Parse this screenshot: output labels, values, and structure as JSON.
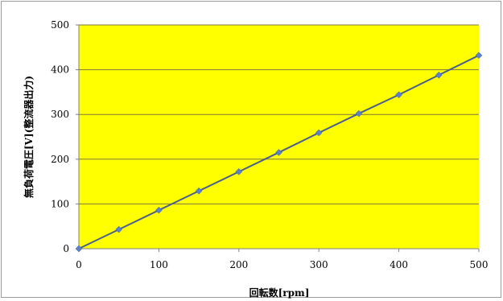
{
  "chart_data": {
    "type": "line",
    "xlabel": "回転数[rpm]",
    "ylabel": "無負荷電圧[V](整流器出力)",
    "xlim": [
      0,
      500
    ],
    "ylim": [
      0,
      500
    ],
    "x_ticks": [
      0,
      100,
      200,
      300,
      400,
      500
    ],
    "y_ticks": [
      0,
      100,
      200,
      300,
      400,
      500
    ],
    "grid": "horizontal",
    "legend": "none",
    "series": [
      {
        "x": [
          0,
          50,
          100,
          150,
          200,
          250,
          300,
          350,
          400,
          450,
          500
        ],
        "y": [
          0,
          43,
          86,
          129,
          172,
          215,
          259,
          302,
          344,
          388,
          432
        ]
      }
    ],
    "colors": {
      "plot_background": "#ffff00",
      "line": "#4a5f8e",
      "marker": "#5b82c7",
      "grid": "#7a7a40"
    }
  }
}
